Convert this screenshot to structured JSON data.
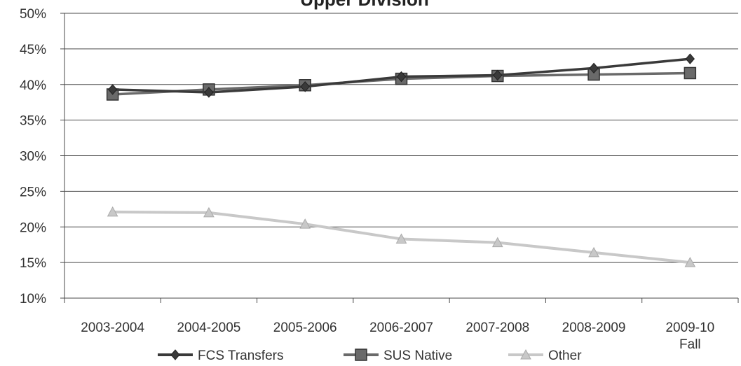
{
  "chart_data": {
    "type": "line",
    "title": "Upper Division",
    "categories": [
      "2003-2004",
      "2004-2005",
      "2005-2006",
      "2006-2007",
      "2007-2008",
      "2008-2009",
      "2009-10 Fall"
    ],
    "category_lines": [
      [
        "2003-2004"
      ],
      [
        "2004-2005"
      ],
      [
        "2005-2006"
      ],
      [
        "2006-2007"
      ],
      [
        "2007-2008"
      ],
      [
        "2008-2009"
      ],
      [
        "2009-10",
        "Fall"
      ]
    ],
    "y_ticks": [
      "10%",
      "15%",
      "20%",
      "25%",
      "30%",
      "35%",
      "40%",
      "45%",
      "50%"
    ],
    "ylim": [
      10,
      50
    ],
    "grid": true,
    "legend_position": "bottom",
    "series": [
      {
        "name": "FCS Transfers",
        "values": [
          39.3,
          38.9,
          39.7,
          41.1,
          41.3,
          42.3,
          43.6
        ],
        "color": "#3a3a3a",
        "marker": "diamond"
      },
      {
        "name": "SUS Native",
        "values": [
          38.6,
          39.3,
          39.9,
          40.8,
          41.2,
          41.4,
          41.6
        ],
        "color": "#6a6a6a",
        "marker": "square"
      },
      {
        "name": "Other",
        "values": [
          22.1,
          22.0,
          20.4,
          18.3,
          17.8,
          16.4,
          15.0
        ],
        "color": "#c8c8c8",
        "marker": "triangle"
      }
    ]
  }
}
